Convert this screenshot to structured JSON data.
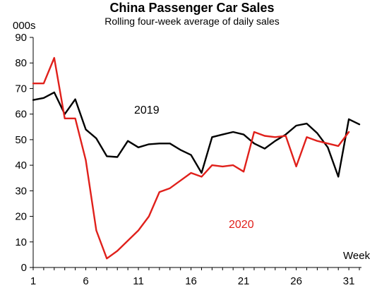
{
  "chart_data": {
    "type": "line",
    "title": "China Passenger Car Sales",
    "subtitle": "Rolling  four-week average of daily sales",
    "ylabel": "000s",
    "xlabel": "Week",
    "ylim": [
      0,
      90
    ],
    "xlim": [
      1,
      32.2
    ],
    "y_ticks": [
      0,
      10,
      20,
      30,
      40,
      50,
      60,
      70,
      80,
      90
    ],
    "x_ticks": [
      1,
      6,
      11,
      16,
      21,
      26,
      31
    ],
    "grid": false,
    "series": [
      {
        "name": "2019",
        "color": "#000000",
        "x": [
          1,
          2,
          3,
          4,
          5,
          6,
          7,
          8,
          9,
          10,
          11,
          12,
          13,
          14,
          15,
          16,
          17,
          18,
          19,
          20,
          21,
          22,
          23,
          24,
          25,
          26,
          27,
          28,
          29,
          30,
          31,
          32
        ],
        "values": [
          65.5,
          66.3,
          68.5,
          60.0,
          65.8,
          54.0,
          50.5,
          43.5,
          43.2,
          49.5,
          47.0,
          48.2,
          48.5,
          48.5,
          46.0,
          44.0,
          37.0,
          51.0,
          52.0,
          53.0,
          52.0,
          48.5,
          46.5,
          49.5,
          52.0,
          55.5,
          56.3,
          52.5,
          47.0,
          35.5,
          58.0,
          56.0
        ]
      },
      {
        "name": "2020",
        "color": "#e0201b",
        "x": [
          1,
          2,
          3,
          4,
          5,
          6,
          7,
          8,
          9,
          10,
          11,
          12,
          13,
          14,
          15,
          16,
          17,
          18,
          19,
          20,
          21,
          22,
          23,
          24,
          25,
          26,
          27,
          28,
          29,
          30,
          31
        ],
        "values": [
          72.0,
          72.0,
          82.0,
          58.3,
          58.3,
          42.0,
          14.5,
          3.5,
          6.5,
          10.5,
          14.5,
          20.0,
          29.5,
          31.0,
          34.0,
          37.0,
          35.5,
          40.0,
          39.5,
          40.0,
          37.5,
          53.0,
          51.5,
          51.0,
          51.5,
          39.5,
          51.0,
          49.5,
          48.5,
          47.5,
          53.0
        ]
      }
    ],
    "annotations": [
      {
        "text": "2019",
        "series": "2019"
      },
      {
        "text": "2020",
        "series": "2020"
      }
    ]
  }
}
